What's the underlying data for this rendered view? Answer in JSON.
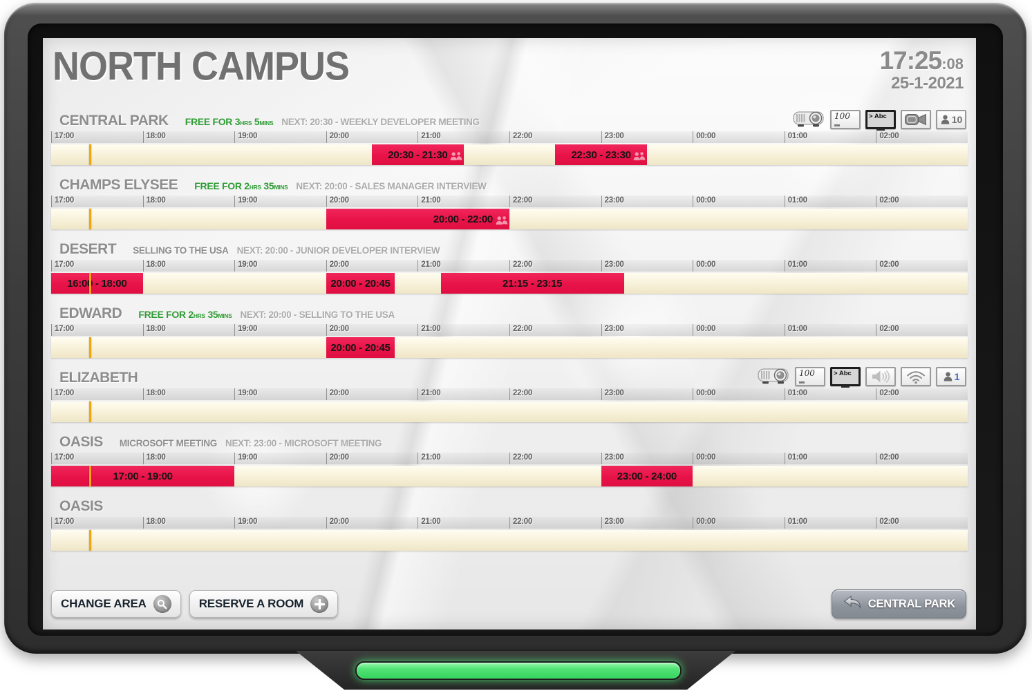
{
  "header": {
    "title": "NORTH CAMPUS",
    "clock_time": "17:25",
    "clock_seconds": ":08",
    "date": "25-1-2021"
  },
  "timeline": {
    "hours": [
      "17:00",
      "18:00",
      "19:00",
      "20:00",
      "21:00",
      "22:00",
      "23:00",
      "00:00",
      "01:00",
      "02:00"
    ],
    "span_hours": 10,
    "now_offset_hours": 0.4167
  },
  "rooms": [
    {
      "name": "CENTRAL PARK",
      "free": {
        "big1": "FREE FOR 3",
        "small1": "HRS",
        "big2": " 5",
        "small2": "MINS"
      },
      "current": null,
      "next": "NEXT: 20:30 - WEEKLY DEVELOPER MEETING",
      "icons": [
        {
          "type": "projector"
        },
        {
          "type": "whiteboard",
          "label": "100"
        },
        {
          "type": "tv",
          "label": "> Abc"
        },
        {
          "type": "camera"
        },
        {
          "type": "capacity",
          "count": "10",
          "count_color": "#6f6f6f"
        }
      ],
      "bookings": [
        {
          "label": "20:30 - 21:30",
          "from": 3.5,
          "to": 4.5,
          "group_icon": true,
          "align": "center"
        },
        {
          "label": "22:30 - 23:30",
          "from": 5.5,
          "to": 6.5,
          "group_icon": true,
          "align": "center"
        }
      ]
    },
    {
      "name": "CHAMPS ELYSEE",
      "free": {
        "big1": "FREE FOR 2",
        "small1": "HRS",
        "big2": " 35",
        "small2": "MINS"
      },
      "current": null,
      "next": "NEXT: 20:00 - SALES MANAGER INTERVIEW",
      "icons": [],
      "bookings": [
        {
          "label": "20:00 - 22:00",
          "from": 3,
          "to": 5,
          "group_icon": true,
          "align": "right"
        }
      ]
    },
    {
      "name": "DESERT",
      "free": null,
      "current": "SELLING TO THE USA",
      "next": "NEXT: 20:00 - JUNIOR DEVELOPER INTERVIEW",
      "icons": [],
      "bookings": [
        {
          "label": "16:00 - 18:00",
          "from": -1,
          "to": 1,
          "align": "center"
        },
        {
          "label": "20:00 - 20:45",
          "from": 3,
          "to": 3.75,
          "align": "center"
        },
        {
          "label": "21:15 - 23:15",
          "from": 4.25,
          "to": 6.25,
          "align": "center"
        }
      ]
    },
    {
      "name": "EDWARD",
      "free": {
        "big1": "FREE FOR 2",
        "small1": "HRS",
        "big2": " 35",
        "small2": "MINS"
      },
      "current": null,
      "next": "NEXT: 20:00 - SELLING TO THE USA",
      "icons": [],
      "bookings": [
        {
          "label": "20:00 - 20:45",
          "from": 3,
          "to": 3.75,
          "align": "center"
        }
      ]
    },
    {
      "name": "ELIZABETH",
      "free": null,
      "current": null,
      "next": null,
      "icons": [
        {
          "type": "projector"
        },
        {
          "type": "whiteboard",
          "label": "100"
        },
        {
          "type": "tv",
          "label": "> Abc"
        },
        {
          "type": "speaker"
        },
        {
          "type": "wifi"
        },
        {
          "type": "capacity",
          "count": "1",
          "count_color": "#3c68c0"
        }
      ],
      "bookings": []
    },
    {
      "name": "OASIS",
      "free": null,
      "current": "MICROSOFT MEETING",
      "next": "NEXT: 23:00 - MICROSOFT MEETING",
      "icons": [],
      "bookings": [
        {
          "label": "17:00 - 19:00",
          "from": 0,
          "to": 2,
          "align": "center"
        },
        {
          "label": "23:00 - 24:00",
          "from": 6,
          "to": 7,
          "align": "center"
        }
      ]
    },
    {
      "name": "OASIS",
      "free": null,
      "current": null,
      "next": null,
      "icons": [],
      "bookings": []
    }
  ],
  "footer": {
    "change_area": "CHANGE AREA",
    "reserve_room": "RESERVE A ROOM",
    "back_room": "CENTRAL PARK"
  },
  "colors": {
    "booking_red": "#e81348",
    "marker_orange": "#f2a70c",
    "free_green": "#2f9c35",
    "led_green": "#45e06c"
  }
}
